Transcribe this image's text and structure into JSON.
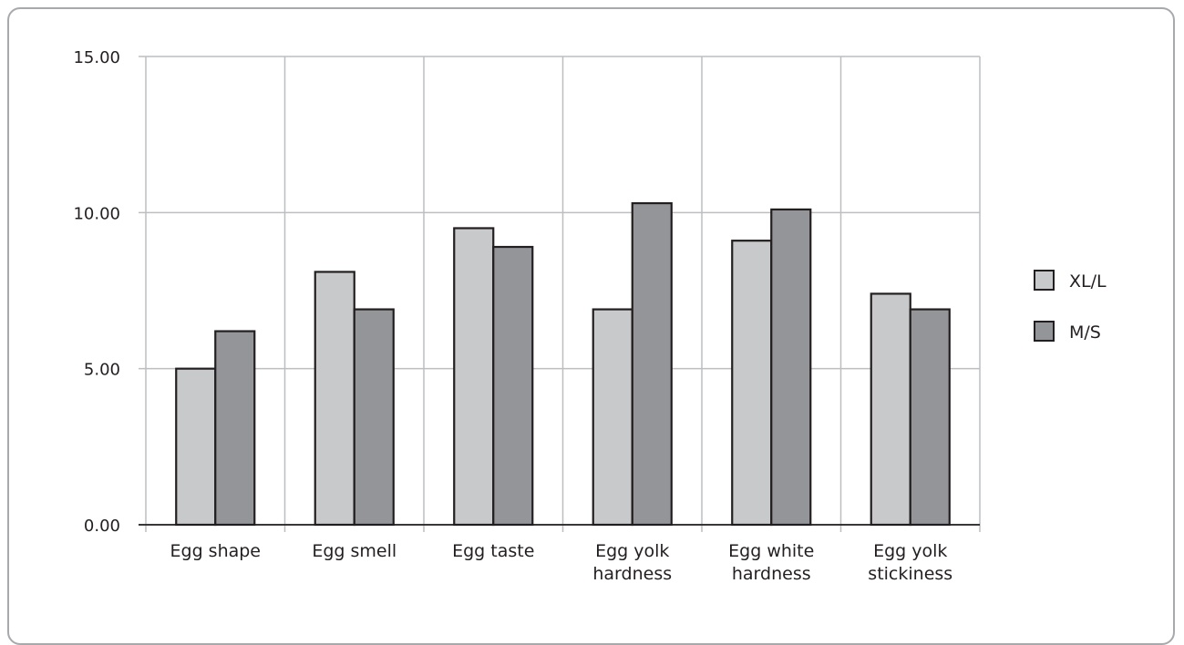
{
  "chart_data": {
    "type": "bar",
    "categories": [
      [
        "Egg shape"
      ],
      [
        "Egg smell"
      ],
      [
        "Egg taste"
      ],
      [
        "Egg yolk",
        "hardness"
      ],
      [
        "Egg white",
        "hardness"
      ],
      [
        "Egg yolk",
        "stickiness"
      ]
    ],
    "series": [
      {
        "name": "XL/L",
        "values": [
          5.0,
          8.1,
          9.5,
          6.9,
          9.1,
          7.4
        ],
        "color": "#c8c9cb"
      },
      {
        "name": "M/S",
        "values": [
          6.2,
          6.9,
          8.9,
          10.3,
          10.1,
          6.9
        ],
        "color": "#939598"
      }
    ],
    "ylim": [
      0,
      15
    ],
    "yticks": [
      "0.00",
      "5.00",
      "10.00",
      "15.00"
    ],
    "ytick_values": [
      0,
      5,
      10,
      15
    ],
    "grid": true,
    "legend_position": "right",
    "title": "",
    "xlabel": "",
    "ylabel": ""
  }
}
